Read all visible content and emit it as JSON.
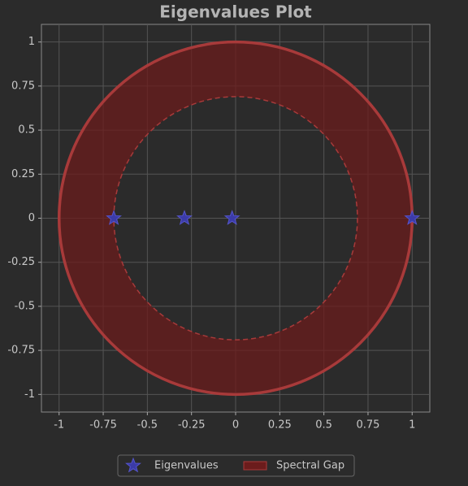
{
  "chart_data": {
    "type": "scatter",
    "title": "Eigenvalues Plot",
    "series": [
      {
        "name": "Eigenvalues",
        "color": "#3b3ba8",
        "x": [
          -0.69,
          -0.29,
          -0.02,
          1.0
        ],
        "values": [
          0,
          0,
          0,
          0
        ]
      }
    ],
    "spectral_gap": {
      "name": "Spectral Gap",
      "color": "#6b1c1c",
      "edge_color": "#a83a3a",
      "inner_radius": 0.69,
      "outer_radius": 1
    },
    "xlim": [
      -1.1,
      1.1
    ],
    "ylim": [
      -1.1,
      1.1
    ],
    "xticks": [
      -1,
      -0.75,
      -0.5,
      -0.25,
      0,
      0.25,
      0.5,
      0.75,
      1
    ],
    "yticks": [
      -1,
      -0.75,
      -0.5,
      -0.25,
      0,
      0.25,
      0.5,
      0.75,
      1
    ],
    "grid": true,
    "legend": "lower center"
  }
}
